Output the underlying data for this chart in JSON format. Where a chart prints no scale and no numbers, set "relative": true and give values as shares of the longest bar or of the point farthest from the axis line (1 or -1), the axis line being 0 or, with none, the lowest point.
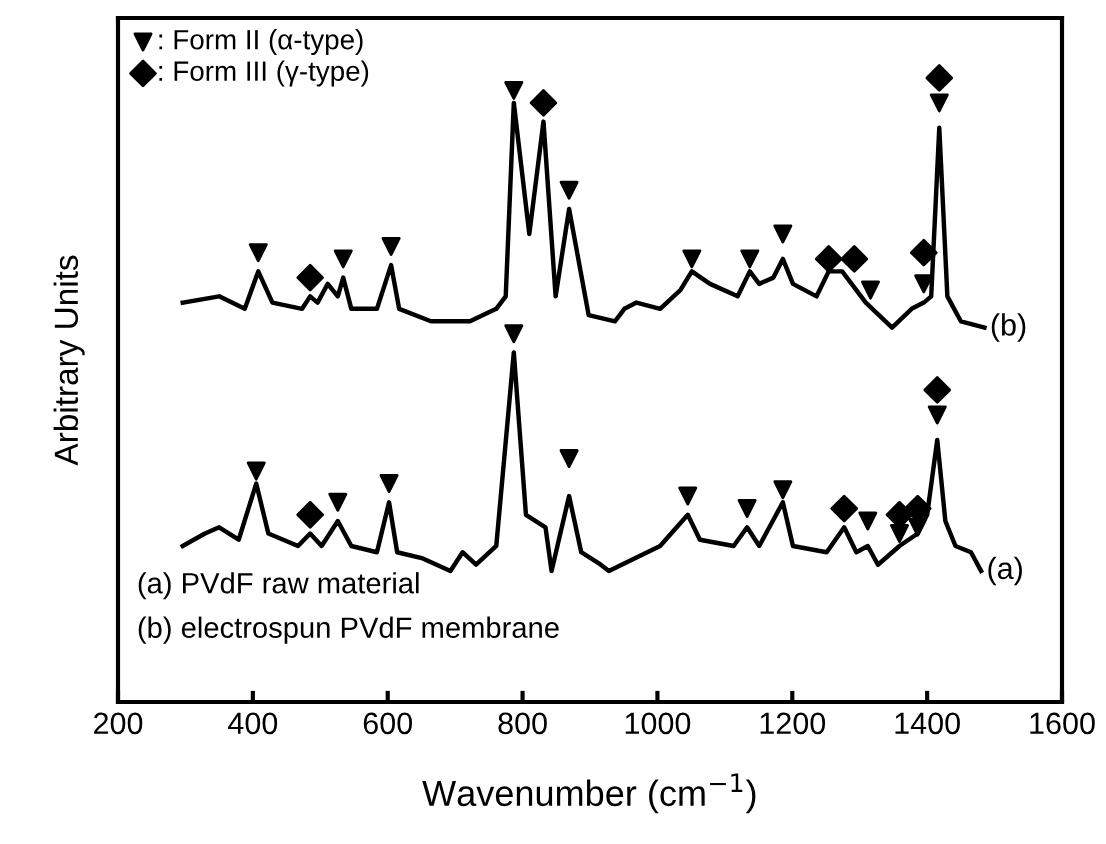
{
  "chart_data": {
    "type": "line",
    "relative": true,
    "xlabel": "Wavenumber (cm$^{−1}$)",
    "ylabel": "Arbitrary Units",
    "xlim": [
      200,
      1600
    ],
    "xticks": [
      200,
      400,
      600,
      800,
      1000,
      1200,
      1400,
      1600
    ],
    "tick_labels": "x",
    "grid": false,
    "legend": "top left",
    "annotations": [
      "(a) PVdF raw material",
      "(b) electrospun PVdF membrane"
    ],
    "series": [
      {
        "name": "(b)",
        "color": "#000000",
        "marker": "none",
        "x": [
          296,
          350,
          388,
          408,
          429,
          473,
          485,
          496,
          511,
          526,
          534,
          546,
          584,
          605,
          617,
          664,
          722,
          761,
          775,
          787,
          810,
          831,
          849,
          869,
          898,
          937,
          951,
          969,
          1004,
          1034,
          1051,
          1078,
          1119,
          1137,
          1151,
          1172,
          1186,
          1201,
          1236,
          1254,
          1274,
          1309,
          1348,
          1377,
          1395,
          1406,
          1418,
          1430,
          1450,
          1485
        ],
        "values": [
          0.64,
          0.65,
          0.63,
          0.69,
          0.64,
          0.63,
          0.65,
          0.64,
          0.67,
          0.65,
          0.68,
          0.63,
          0.63,
          0.7,
          0.63,
          0.61,
          0.61,
          0.63,
          0.65,
          0.96,
          0.75,
          0.93,
          0.65,
          0.79,
          0.62,
          0.61,
          0.63,
          0.64,
          0.63,
          0.66,
          0.69,
          0.67,
          0.65,
          0.69,
          0.67,
          0.68,
          0.71,
          0.67,
          0.65,
          0.69,
          0.69,
          0.64,
          0.6,
          0.63,
          0.64,
          0.65,
          0.92,
          0.65,
          0.61,
          0.6
        ]
      },
      {
        "name": "(a)",
        "color": "#000000",
        "marker": "none",
        "x": [
          296,
          329,
          350,
          379,
          405,
          423,
          467,
          485,
          502,
          526,
          546,
          584,
          602,
          614,
          652,
          693,
          711,
          731,
          761,
          787,
          805,
          834,
          843,
          869,
          887,
          916,
          928,
          966,
          1004,
          1045,
          1063,
          1113,
          1133,
          1151,
          1186,
          1201,
          1251,
          1277,
          1295,
          1312,
          1327,
          1359,
          1386,
          1400,
          1415,
          1427,
          1442,
          1465,
          1480
        ],
        "values": [
          0.25,
          0.27,
          0.28,
          0.26,
          0.35,
          0.27,
          0.25,
          0.27,
          0.25,
          0.29,
          0.25,
          0.24,
          0.32,
          0.24,
          0.23,
          0.21,
          0.24,
          0.22,
          0.25,
          0.56,
          0.3,
          0.28,
          0.21,
          0.33,
          0.24,
          0.22,
          0.21,
          0.23,
          0.25,
          0.3,
          0.26,
          0.25,
          0.28,
          0.25,
          0.32,
          0.25,
          0.24,
          0.28,
          0.24,
          0.25,
          0.22,
          0.25,
          0.27,
          0.3,
          0.42,
          0.29,
          0.25,
          0.24,
          0.21
        ]
      },
      {
        "name": ": Form II (α-type)",
        "type": "scatter",
        "color": "#000000",
        "marker": "triangle",
        "x": [
          408,
          534,
          605,
          787,
          869,
          1051,
          1137,
          1186,
          1316,
          1395,
          1418,
          405,
          526,
          602,
          787,
          869,
          1045,
          1133,
          1186,
          1312,
          1359,
          1386,
          1415
        ],
        "values": [
          0.72,
          0.71,
          0.73,
          0.98,
          0.82,
          0.71,
          0.71,
          0.75,
          0.66,
          0.67,
          0.96,
          0.37,
          0.32,
          0.35,
          0.59,
          0.39,
          0.33,
          0.31,
          0.34,
          0.29,
          0.27,
          0.28,
          0.46
        ]
      },
      {
        "name": ": Form III (γ-type)",
        "type": "scatter",
        "color": "#000000",
        "marker": "diamond",
        "x": [
          485,
          831,
          1254,
          1292,
          1395,
          1418,
          485,
          1277,
          1359,
          1386,
          1415
        ],
        "values": [
          0.68,
          0.96,
          0.71,
          0.71,
          0.72,
          1.0,
          0.3,
          0.31,
          0.3,
          0.31,
          0.5
        ]
      }
    ]
  }
}
